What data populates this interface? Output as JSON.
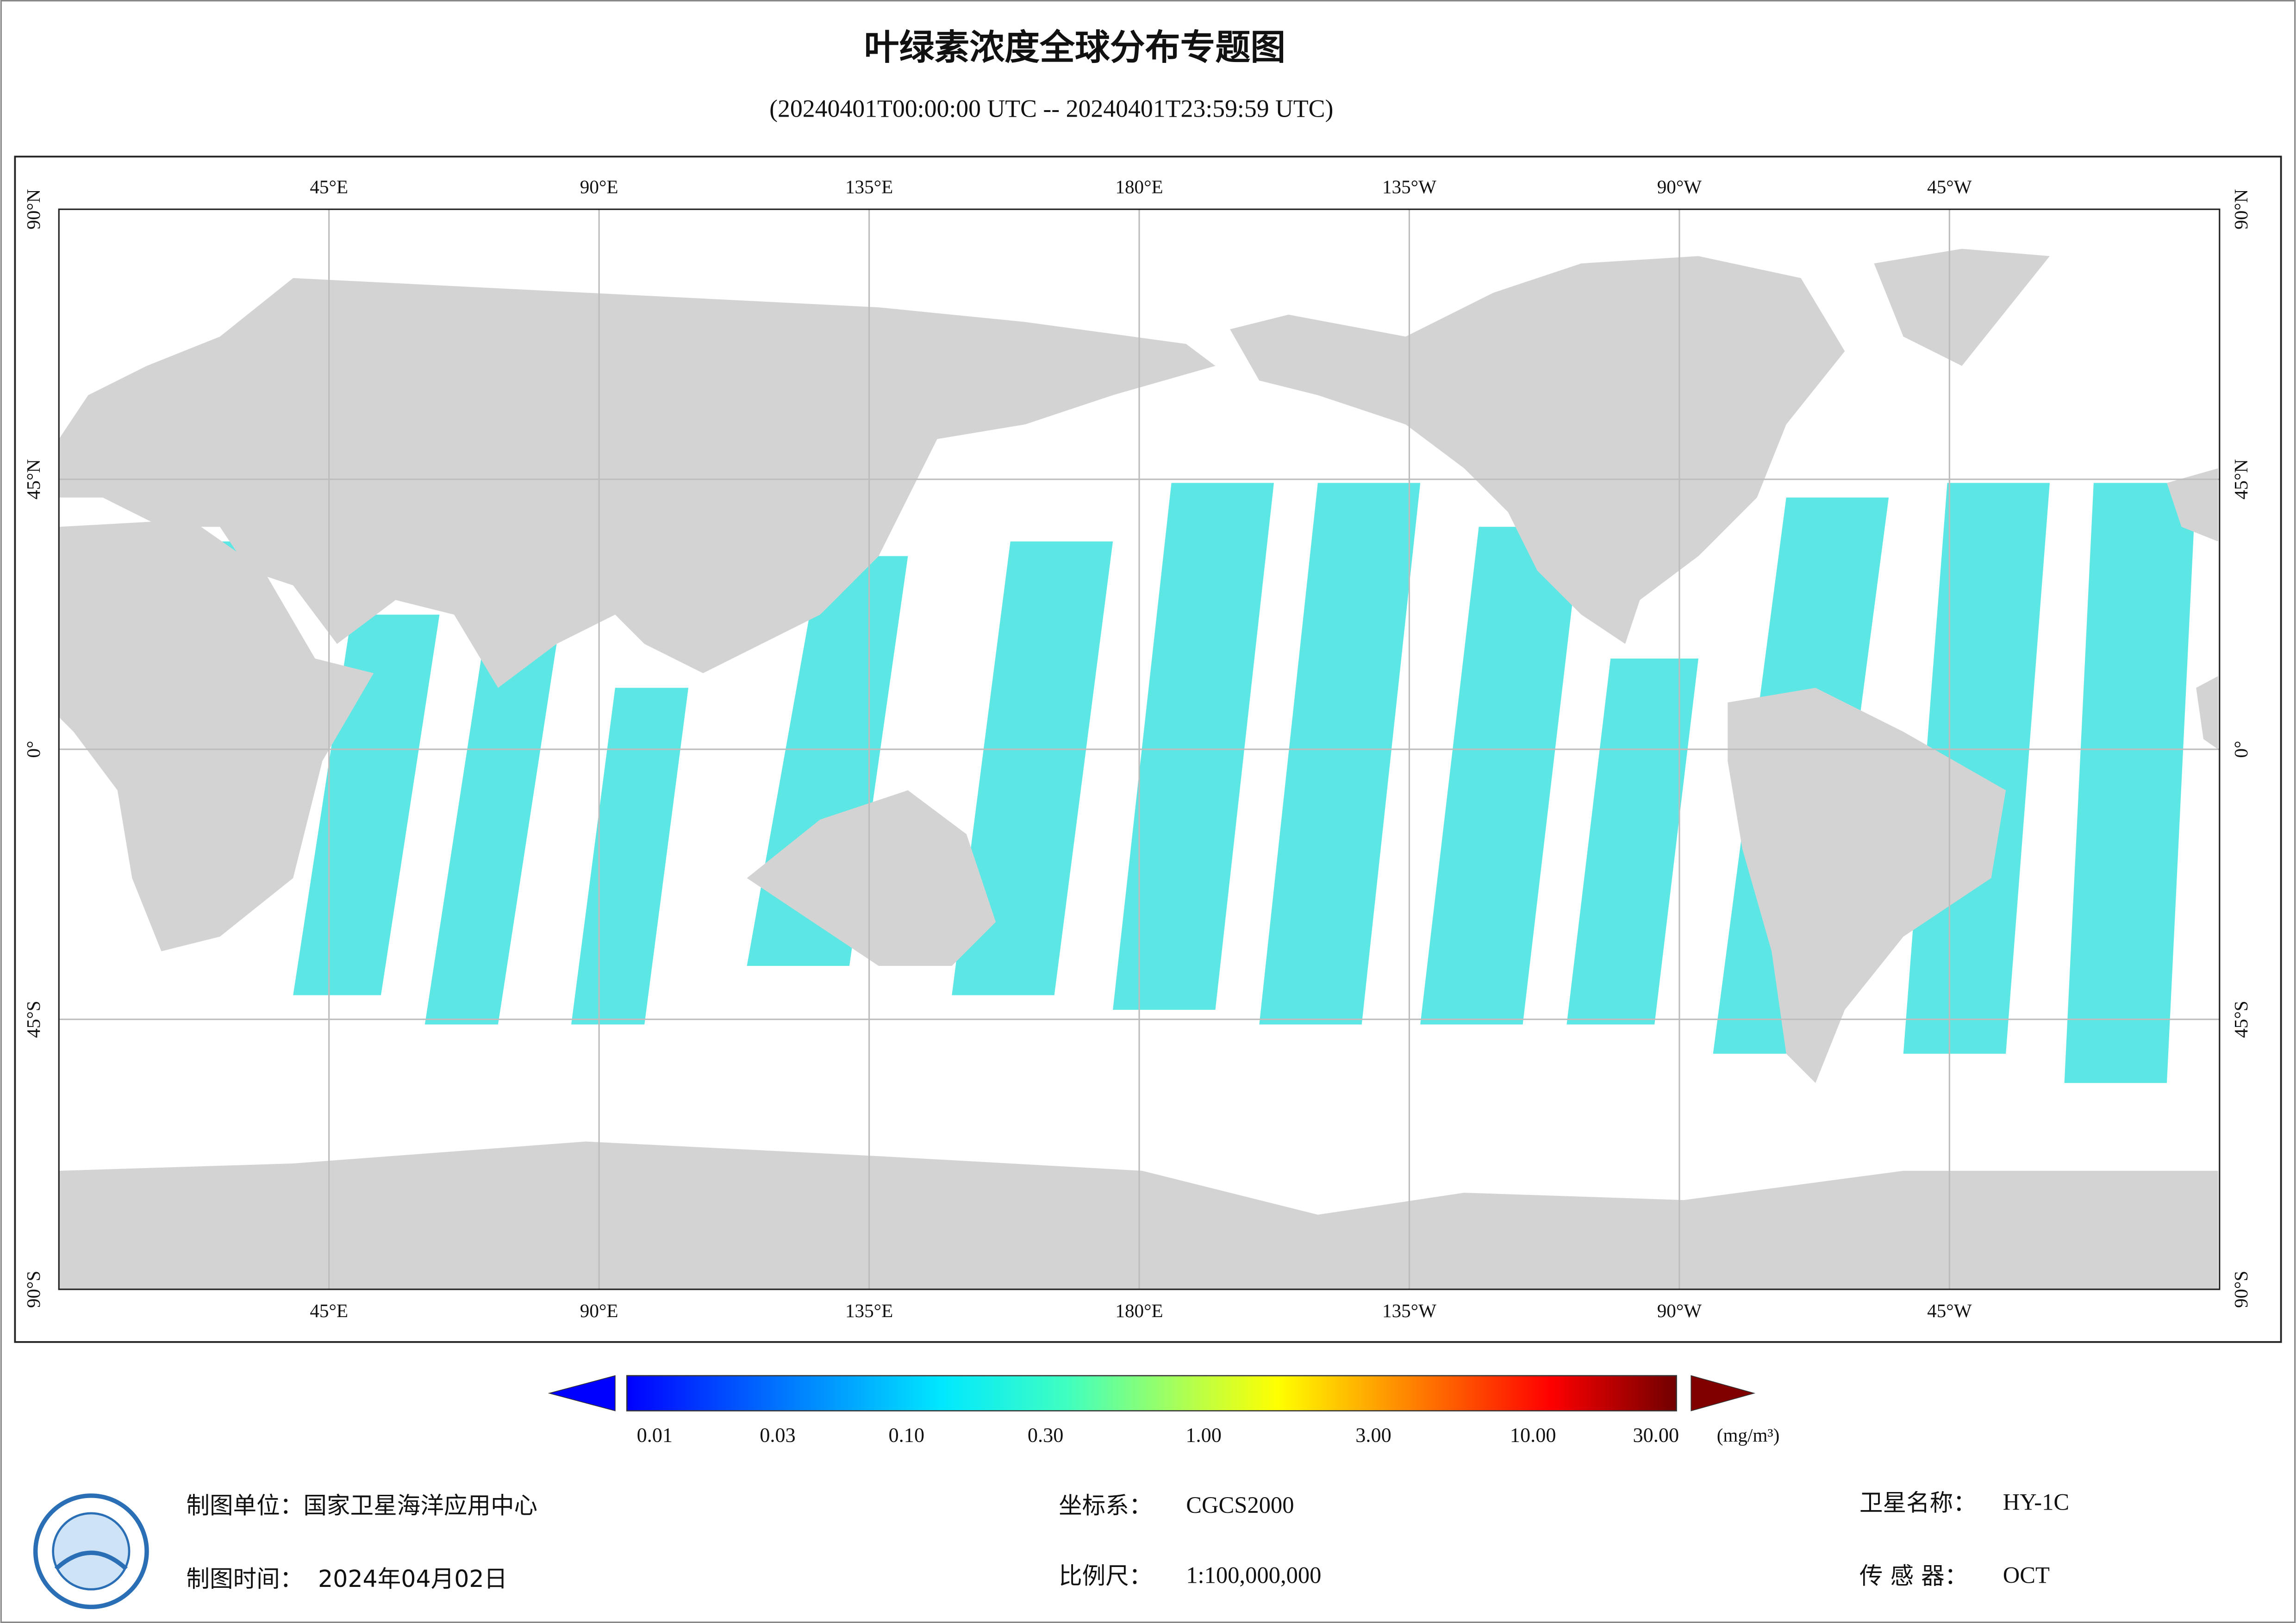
{
  "header": {
    "title": "叶绿素浓度全球分布专题图",
    "subtitle": "(20240401T00:00:00 UTC -- 20240401T23:59:59 UTC)"
  },
  "map": {
    "lon_labels": [
      "45°E",
      "90°E",
      "135°E",
      "180°E",
      "135°W",
      "90°W",
      "45°W"
    ],
    "lat_labels": [
      "90°N",
      "45°N",
      "0°",
      "45°S",
      "90°S"
    ]
  },
  "colorbar": {
    "labels": [
      "0.01",
      "0.03",
      "0.10",
      "0.30",
      "1.00",
      "3.00",
      "10.00",
      "30.00"
    ],
    "unit": "(mg/m³)"
  },
  "footer": {
    "org_label": "制图单位：",
    "org": "国家卫星海洋应用中心",
    "crs_label": "坐标系：",
    "crs": "CGCS2000",
    "sat_label": "卫星名称：",
    "sat": "HY-1C",
    "date_label": "制图时间：",
    "date": "2024年04月02日",
    "scale_label": "比例尺：",
    "scale": "1:100,000,000",
    "sensor_label": "传 感 器：",
    "sensor": "OCT"
  }
}
